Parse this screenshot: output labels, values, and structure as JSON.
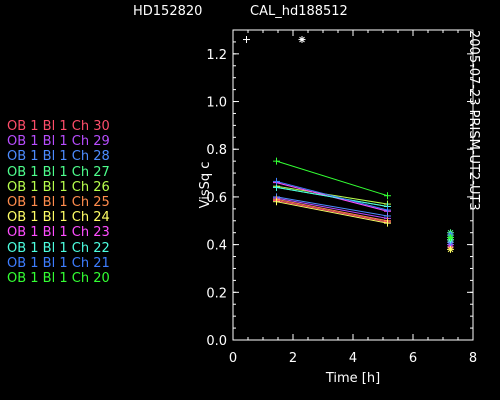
{
  "header": {
    "target": "HD152820",
    "calibrator": "CAL_hd188512"
  },
  "side_label": "2005-07-23 PRISM-UT2-UT3",
  "legend": [
    {
      "label": "OB 1 Bl 1 Ch 30",
      "color": "#ff4d6a"
    },
    {
      "label": "OB 1 Bl 1 Ch 29",
      "color": "#b84dff"
    },
    {
      "label": "OB 1 Bl 1 Ch 28",
      "color": "#4d8cff"
    },
    {
      "label": "OB 1 Bl 1 Ch 27",
      "color": "#4dff8c"
    },
    {
      "label": "OB 1 Bl 1 Ch 26",
      "color": "#b8ff4d"
    },
    {
      "label": "OB 1 Bl 1 Ch 25",
      "color": "#ff8c4d"
    },
    {
      "label": "OB 1 Bl 1 Ch 24",
      "color": "#ffff66"
    },
    {
      "label": "OB 1 Bl 1 Ch 23",
      "color": "#ff4dff"
    },
    {
      "label": "OB 1 Bl 1 Ch 22",
      "color": "#4dffe0"
    },
    {
      "label": "OB 1 Bl 1 Ch 21",
      "color": "#3d7dff"
    },
    {
      "label": "OB 1 Bl 1 Ch 20",
      "color": "#33ff33"
    }
  ],
  "chart_data": {
    "type": "line",
    "xlabel": "Time [h]",
    "ylabel": "VisSq c",
    "xlim": [
      0,
      8
    ],
    "ylim": [
      0,
      1.3
    ],
    "xticks": [
      0,
      2,
      4,
      6,
      8
    ],
    "yticks": [
      "0.0",
      "0.2",
      "0.4",
      "0.6",
      "0.8",
      "1.0",
      "1.2"
    ],
    "calibrator_points": [
      {
        "x": 0.45,
        "y": 1.26,
        "marker": "+"
      },
      {
        "x": 2.3,
        "y": 1.26,
        "marker": "*"
      }
    ],
    "series": [
      {
        "name": "OB 1 Bl 1 Ch 30",
        "x": [
          1.45,
          5.15
        ],
        "y": [
          0.585,
          0.495
        ],
        "color": "#ff4d6a",
        "star": 0.39
      },
      {
        "name": "OB 1 Bl 1 Ch 29",
        "x": [
          1.45,
          5.15
        ],
        "y": [
          0.595,
          0.51
        ],
        "color": "#b84dff",
        "star": 0.4
      },
      {
        "name": "OB 1 Bl 1 Ch 28",
        "x": [
          1.45,
          5.15
        ],
        "y": [
          0.6,
          0.52
        ],
        "color": "#4d8cff",
        "star": 0.41
      },
      {
        "name": "OB 1 Bl 1 Ch 27",
        "x": [
          1.45,
          5.15
        ],
        "y": [
          0.64,
          0.56
        ],
        "color": "#4dff8c",
        "star": 0.45
      },
      {
        "name": "OB 1 Bl 1 Ch 26",
        "x": [
          1.45,
          5.15
        ],
        "y": [
          0.645,
          0.57
        ],
        "color": "#b8ff4d",
        "star": 0.44
      },
      {
        "name": "OB 1 Bl 1 Ch 25",
        "x": [
          1.45,
          5.15
        ],
        "y": [
          0.59,
          0.5
        ],
        "color": "#ff8c4d",
        "star": 0.42
      },
      {
        "name": "OB 1 Bl 1 Ch 24",
        "x": [
          1.45,
          5.15
        ],
        "y": [
          0.58,
          0.49
        ],
        "color": "#ffff66",
        "star": 0.38
      },
      {
        "name": "OB 1 Bl 1 Ch 23",
        "x": [
          1.45,
          5.15
        ],
        "y": [
          0.66,
          0.54
        ],
        "color": "#ff4dff",
        "star": 0.43
      },
      {
        "name": "OB 1 Bl 1 Ch 22",
        "x": [
          1.45,
          5.15
        ],
        "y": [
          0.64,
          0.56
        ],
        "color": "#4dffe0",
        "star": 0.42
      },
      {
        "name": "OB 1 Bl 1 Ch 21",
        "x": [
          1.45,
          5.15
        ],
        "y": [
          0.665,
          0.545
        ],
        "color": "#3d7dff",
        "star": 0.44
      },
      {
        "name": "OB 1 Bl 1 Ch 20",
        "x": [
          1.45,
          5.15
        ],
        "y": [
          0.75,
          0.605
        ],
        "color": "#33ff33",
        "star": 0.43
      }
    ],
    "star_x": 7.25,
    "grid": false
  }
}
